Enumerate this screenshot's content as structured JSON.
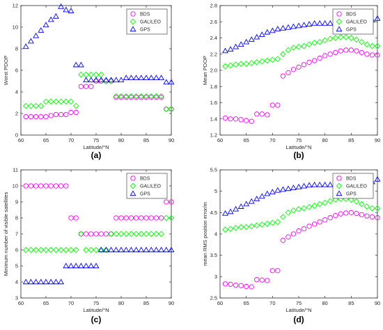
{
  "chart_data": [
    {
      "type": "scatter",
      "panel_label": "(a)",
      "xlabel": "Latitude/°N",
      "ylabel": "Worst PDOP",
      "xlim": [
        60,
        90
      ],
      "ylim": [
        0,
        12
      ],
      "xticks": [
        60,
        65,
        70,
        75,
        80,
        85,
        90
      ],
      "yticks": [
        0,
        2,
        4,
        6,
        8,
        10,
        12
      ],
      "legend_position": "top-right",
      "x": [
        61,
        62,
        63,
        64,
        65,
        66,
        67,
        68,
        69,
        70,
        71,
        72,
        73,
        74,
        75,
        76,
        77,
        78,
        79,
        80,
        81,
        82,
        83,
        84,
        85,
        86,
        87,
        88,
        89,
        90
      ],
      "series": [
        {
          "name": "BDS",
          "marker": "circle",
          "color": "#ff00ff",
          "values": [
            1.7,
            1.7,
            1.7,
            1.7,
            1.7,
            1.8,
            1.9,
            1.9,
            1.9,
            2.1,
            2.1,
            4.5,
            4.5,
            4.5,
            5.0,
            5.0,
            5.0,
            5.0,
            3.5,
            3.5,
            3.5,
            3.5,
            3.5,
            3.5,
            3.5,
            3.5,
            3.5,
            3.5,
            2.4,
            2.4
          ]
        },
        {
          "name": "GALILEO",
          "marker": "diamond",
          "color": "#00ff00",
          "values": [
            2.7,
            2.7,
            2.7,
            2.7,
            3.1,
            3.1,
            3.1,
            3.1,
            3.1,
            3.1,
            2.7,
            5.6,
            5.6,
            5.6,
            5.6,
            5.6,
            5.0,
            5.0,
            3.6,
            3.6,
            3.6,
            3.6,
            3.6,
            3.6,
            3.6,
            3.6,
            3.6,
            3.6,
            2.4,
            2.4
          ]
        },
        {
          "name": "GPS",
          "marker": "triangle",
          "color": "#0000ff",
          "values": [
            8.2,
            8.7,
            9.2,
            9.7,
            10.2,
            10.7,
            11.0,
            11.9,
            11.6,
            11.5,
            6.5,
            6.5,
            5.1,
            5.1,
            5.1,
            5.1,
            5.1,
            5.1,
            5.1,
            5.1,
            5.3,
            5.3,
            5.3,
            5.3,
            5.3,
            5.3,
            5.3,
            5.3,
            4.9,
            4.9
          ]
        }
      ]
    },
    {
      "type": "scatter",
      "panel_label": "(b)",
      "xlabel": "Latitude/°N",
      "ylabel": "Mean PDOP",
      "xlim": [
        60,
        90
      ],
      "ylim": [
        1.2,
        2.8
      ],
      "xticks": [
        60,
        65,
        70,
        75,
        80,
        85,
        90
      ],
      "yticks": [
        1.2,
        1.4,
        1.6,
        1.8,
        2.0,
        2.2,
        2.4,
        2.6,
        2.8
      ],
      "legend_position": "top-right",
      "x": [
        61,
        62,
        63,
        64,
        65,
        66,
        67,
        68,
        69,
        70,
        71,
        72,
        73,
        74,
        75,
        76,
        77,
        78,
        79,
        80,
        81,
        82,
        83,
        84,
        85,
        86,
        87,
        88,
        89,
        90
      ],
      "series": [
        {
          "name": "BDS",
          "marker": "circle",
          "color": "#ff00ff",
          "values": [
            1.41,
            1.4,
            1.4,
            1.39,
            1.38,
            1.37,
            1.46,
            1.46,
            1.45,
            1.57,
            1.57,
            1.93,
            1.97,
            2.01,
            2.04,
            2.07,
            2.1,
            2.12,
            2.15,
            2.18,
            2.2,
            2.22,
            2.24,
            2.25,
            2.25,
            2.24,
            2.22,
            2.2,
            2.19,
            2.19
          ]
        },
        {
          "name": "GALILEO",
          "marker": "diamond",
          "color": "#00ff00",
          "values": [
            2.05,
            2.06,
            2.07,
            2.08,
            2.08,
            2.09,
            2.1,
            2.11,
            2.12,
            2.13,
            2.14,
            2.2,
            2.25,
            2.28,
            2.29,
            2.3,
            2.32,
            2.34,
            2.35,
            2.37,
            2.39,
            2.4,
            2.41,
            2.41,
            2.4,
            2.38,
            2.35,
            2.32,
            2.3,
            2.3
          ]
        },
        {
          "name": "GPS",
          "marker": "triangle",
          "color": "#0000ff",
          "values": [
            2.24,
            2.26,
            2.29,
            2.32,
            2.35,
            2.38,
            2.41,
            2.44,
            2.47,
            2.49,
            2.51,
            2.52,
            2.53,
            2.54,
            2.55,
            2.56,
            2.57,
            2.58,
            2.58,
            2.58,
            2.58,
            2.58,
            2.58,
            2.58,
            2.58,
            2.58,
            2.59,
            2.6,
            2.62,
            2.64
          ]
        }
      ]
    },
    {
      "type": "scatter",
      "panel_label": "(c)",
      "xlabel": "Latitude/°N",
      "ylabel": "Minimum number of visible satellites",
      "xlim": [
        60,
        90
      ],
      "ylim": [
        3,
        11
      ],
      "xticks": [
        60,
        65,
        70,
        75,
        80,
        85,
        90
      ],
      "yticks": [
        3,
        4,
        5,
        6,
        7,
        8,
        9,
        10,
        11
      ],
      "legend_position": "top-right",
      "x": [
        61,
        62,
        63,
        64,
        65,
        66,
        67,
        68,
        69,
        70,
        71,
        72,
        73,
        74,
        75,
        76,
        77,
        78,
        79,
        80,
        81,
        82,
        83,
        84,
        85,
        86,
        87,
        88,
        89,
        90
      ],
      "series": [
        {
          "name": "BDS",
          "marker": "circle",
          "color": "#ff00ff",
          "values": [
            10,
            10,
            10,
            10,
            10,
            10,
            10,
            10,
            10,
            8,
            8,
            7,
            7,
            7,
            7,
            7,
            7,
            7,
            8,
            8,
            8,
            8,
            8,
            8,
            8,
            8,
            8,
            8,
            9,
            9
          ]
        },
        {
          "name": "GALILEO",
          "marker": "diamond",
          "color": "#00ff00",
          "values": [
            6,
            6,
            6,
            6,
            6,
            6,
            6,
            6,
            6,
            6,
            6,
            7,
            6,
            6,
            6,
            6,
            6,
            7,
            7,
            7,
            7,
            7,
            7,
            7,
            7,
            7,
            7,
            7,
            8,
            8
          ]
        },
        {
          "name": "GPS",
          "marker": "triangle",
          "color": "#0000ff",
          "values": [
            4,
            4,
            4,
            4,
            4,
            4,
            4,
            4,
            5,
            5,
            5,
            5,
            5,
            5,
            5,
            6,
            6,
            6,
            6,
            6,
            6,
            6,
            6,
            6,
            6,
            6,
            6,
            6,
            6,
            6
          ]
        }
      ]
    },
    {
      "type": "scatter",
      "panel_label": "(d)",
      "xlabel": "Latitude/°N",
      "ylabel": "mean RMS position error/m",
      "xlim": [
        60,
        90
      ],
      "ylim": [
        2.5,
        5.5
      ],
      "xticks": [
        60,
        65,
        70,
        75,
        80,
        85,
        90
      ],
      "yticks": [
        2.5,
        3,
        3.5,
        4,
        4.5,
        5,
        5.5
      ],
      "legend_position": "top-right",
      "x": [
        61,
        62,
        63,
        64,
        65,
        66,
        67,
        68,
        69,
        70,
        71,
        72,
        73,
        74,
        75,
        76,
        77,
        78,
        79,
        80,
        81,
        82,
        83,
        84,
        85,
        86,
        87,
        88,
        89,
        90
      ],
      "series": [
        {
          "name": "BDS",
          "marker": "circle",
          "color": "#ff00ff",
          "values": [
            2.83,
            2.82,
            2.8,
            2.79,
            2.77,
            2.76,
            2.93,
            2.92,
            2.91,
            3.14,
            3.14,
            3.85,
            3.93,
            4.0,
            4.07,
            4.12,
            4.18,
            4.23,
            4.28,
            4.33,
            4.38,
            4.43,
            4.47,
            4.49,
            4.5,
            4.48,
            4.45,
            4.42,
            4.4,
            4.38
          ]
        },
        {
          "name": "GALILEO",
          "marker": "diamond",
          "color": "#00ff00",
          "values": [
            4.1,
            4.12,
            4.14,
            4.16,
            4.16,
            4.18,
            4.2,
            4.22,
            4.24,
            4.26,
            4.28,
            4.4,
            4.5,
            4.55,
            4.58,
            4.6,
            4.63,
            4.66,
            4.7,
            4.73,
            4.77,
            4.8,
            4.82,
            4.82,
            4.8,
            4.76,
            4.7,
            4.64,
            4.6,
            4.6
          ]
        },
        {
          "name": "GPS",
          "marker": "triangle",
          "color": "#0000ff",
          "values": [
            4.48,
            4.52,
            4.58,
            4.64,
            4.7,
            4.76,
            4.82,
            4.88,
            4.94,
            4.98,
            5.02,
            5.04,
            5.06,
            5.08,
            5.1,
            5.12,
            5.14,
            5.15,
            5.15,
            5.15,
            5.15,
            5.15,
            5.15,
            5.15,
            5.15,
            5.15,
            5.16,
            5.18,
            5.22,
            5.28
          ]
        }
      ]
    }
  ]
}
